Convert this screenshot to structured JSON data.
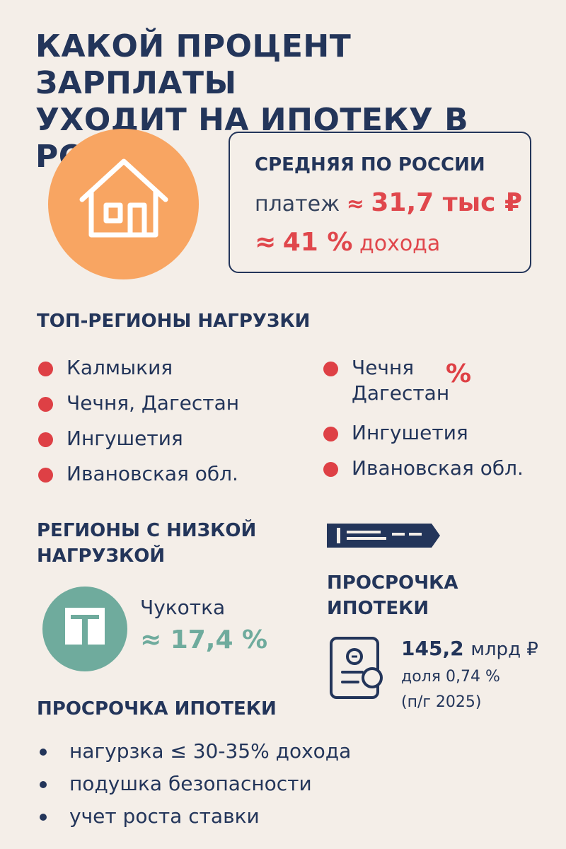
{
  "header": {
    "title_line1": "КАКОЙ ПРОЦЕНТ ЗАРПЛАТЫ",
    "title_line2": "УХОДИТ НА ИПОТЕКУ В РОССИ"
  },
  "colors": {
    "background": "#f4eee8",
    "navy": "#23355a",
    "accent_red": "#e0474c",
    "orange": "#f8a562",
    "teal": "#6fab9d"
  },
  "icons": {
    "hero": "house-icon",
    "low_region": "building-icon",
    "banner": "banner-icon",
    "document": "document-icon"
  },
  "average": {
    "title": "СРЕДНЯЯ ПО РОССИИ",
    "payment_label": "платеж",
    "approx": "≈",
    "payment_value": "31,7 тыс ₽",
    "share_value": "41 %",
    "share_suffix": "дохода"
  },
  "top_regions": {
    "title": "ТОП-РЕГИОНЫ НАГРУЗКИ",
    "left_items": [
      "Калмыкия",
      "Чечня, Дагестан",
      "Ингушетия",
      "Ивановская обл."
    ],
    "right_items": [
      {
        "line1": "Чечня",
        "line2": "Дагестан"
      },
      {
        "line1": "Ингушетия"
      },
      {
        "line1": "Ивановская обл."
      }
    ],
    "percent_glyph": "%"
  },
  "low_regions": {
    "title_line1": "РЕГИОНЫ С НИЗКОЙ",
    "title_line2": "НАГРУЗКОЙ",
    "region": "Чукотка",
    "value": "≈ 17,4 %"
  },
  "overdue": {
    "title_line1": "ПРОСРОЧКА",
    "title_line2": "ИПОТЕКИ",
    "amount_value": "145,2",
    "amount_unit": "млрд ₽",
    "share": "доля 0,74 %",
    "period": "(п/г 2025)"
  },
  "tips": {
    "title": "ПРОСРОЧКА ИПОТЕКИ",
    "items": [
      "нагурзка ≤ 30-35% дохода",
      "подушка безопасности",
      "учет роста ставки"
    ]
  }
}
